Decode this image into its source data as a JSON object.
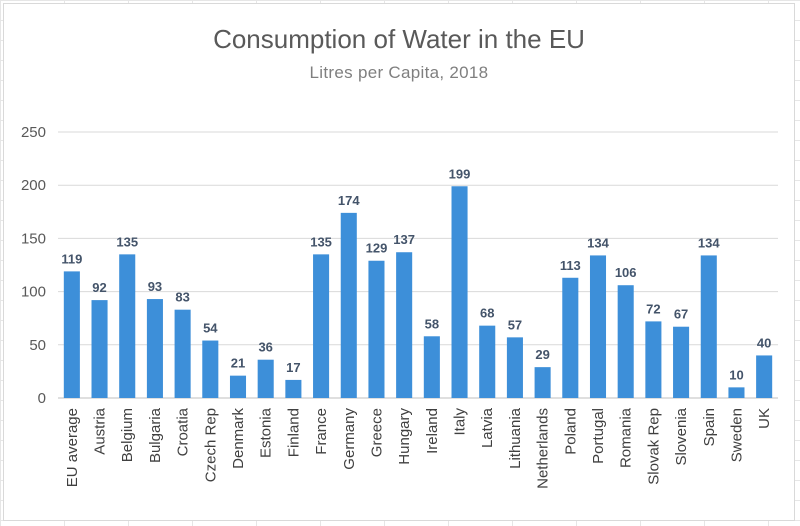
{
  "chart_data": {
    "type": "bar",
    "title": "Consumption of Water in the EU",
    "subtitle": "Litres per Capita, 2018",
    "xlabel": "",
    "ylabel": "",
    "ylim": [
      0,
      250
    ],
    "yticks": [
      "0",
      "50",
      "100",
      "150",
      "200",
      "250"
    ],
    "grid": true,
    "legend": "none",
    "bar_color": "#3d8fd9",
    "categories": [
      "EU average",
      "Austria",
      "Belgium",
      "Bulgaria",
      "Croatia",
      "Czech Rep",
      "Denmark",
      "Estonia",
      "Finland",
      "France",
      "Germany",
      "Greece",
      "Hungary",
      "Ireland",
      "Italy",
      "Latvia",
      "Lithuania",
      "Netherlands",
      "Poland",
      "Portugal",
      "Romania",
      "Slovak Rep",
      "Slovenia",
      "Spain",
      "Sweden",
      "UK"
    ],
    "values": [
      119,
      92,
      135,
      93,
      83,
      54,
      21,
      36,
      17,
      135,
      174,
      129,
      137,
      58,
      199,
      68,
      57,
      29,
      113,
      134,
      106,
      72,
      67,
      134,
      10,
      40
    ]
  }
}
